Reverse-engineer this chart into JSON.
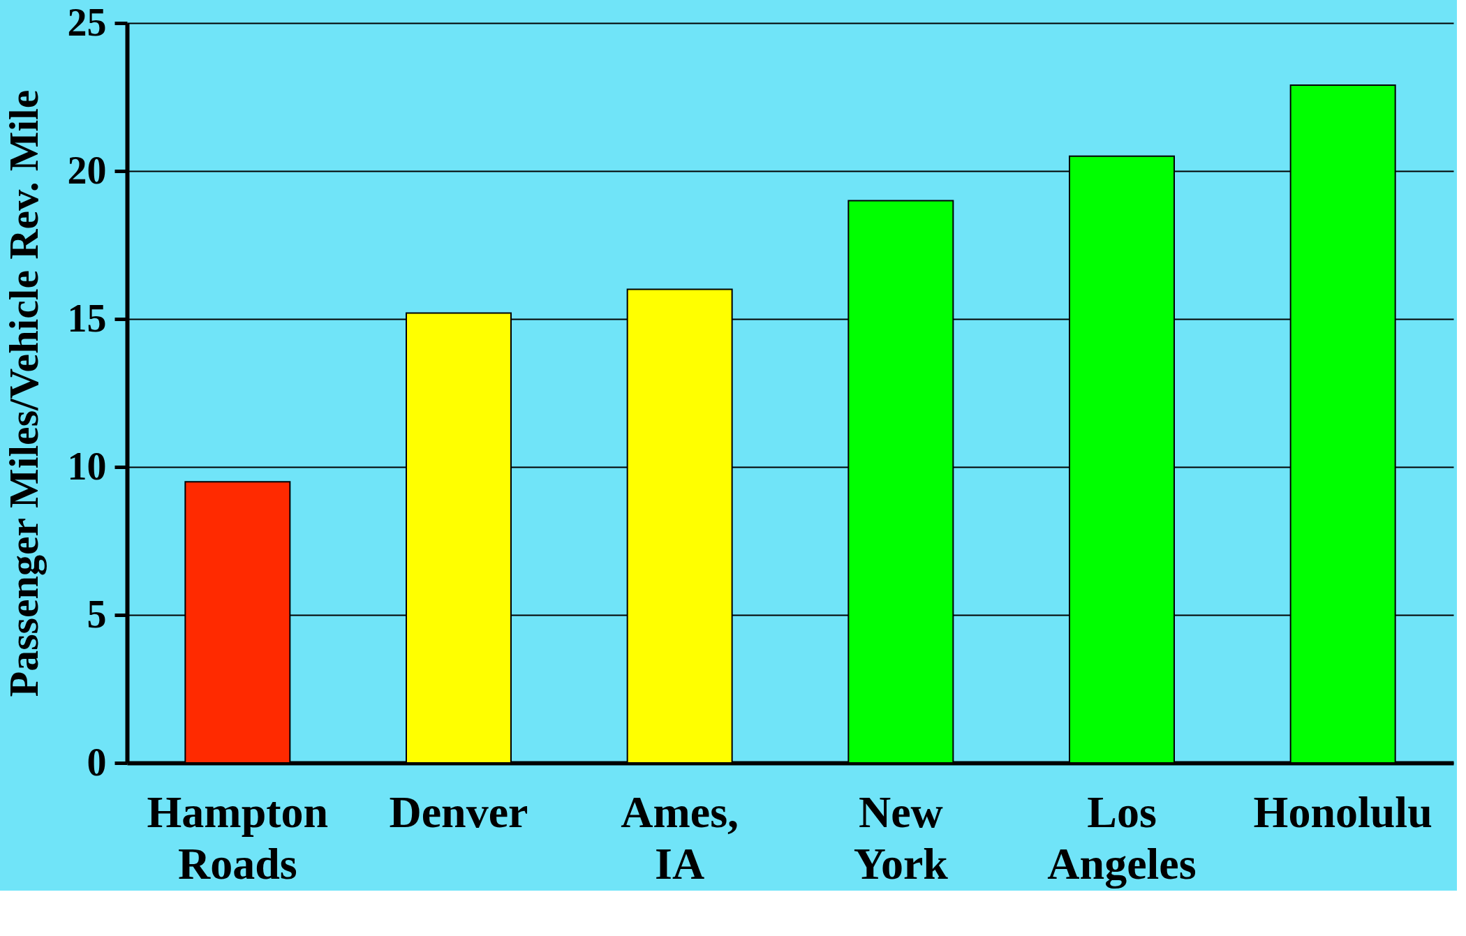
{
  "chart_data": {
    "type": "bar",
    "ylabel": "Passenger Miles/Vehicle Rev. Mile",
    "categories": [
      "Hampton Roads",
      "Denver",
      "Ames, IA",
      "New York",
      "Los Angeles",
      "Honolulu"
    ],
    "values": [
      9.5,
      15.2,
      16.0,
      19.0,
      20.5,
      22.9
    ],
    "colors": [
      "#ff2a00",
      "#ffff00",
      "#ffff00",
      "#00ff00",
      "#00ff00",
      "#00ff00"
    ],
    "ylim": [
      0,
      25
    ],
    "yticks": [
      0,
      5,
      10,
      15,
      20,
      25
    ],
    "grid": "y"
  }
}
